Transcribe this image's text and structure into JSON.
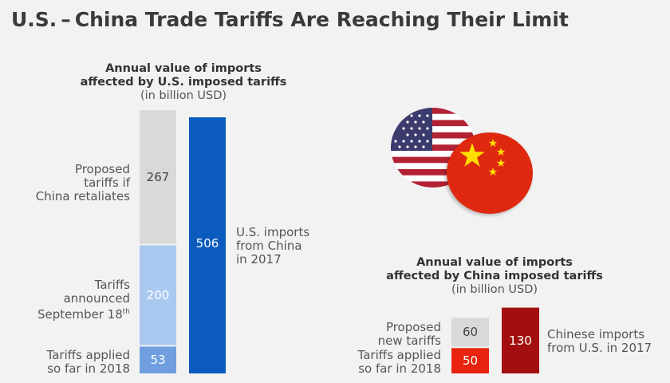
{
  "title": "U.S. – China Trade Tariffs Are Reaching Their Limit",
  "chart_data": [
    {
      "type": "bar",
      "title_line1": "Annual value of imports",
      "title_line2": "affected by U.S. imposed tariffs",
      "unit": "(in billion USD)",
      "stacked_bar": {
        "segments": [
          {
            "name_lines": [
              "Tariffs applied",
              "so far in 2018"
            ],
            "value": 53,
            "color": "#6f9fe0",
            "label_color": "#ffffff"
          },
          {
            "name_lines": [
              "Tariffs",
              "announced",
              "September 18"
            ],
            "name_sup": "th",
            "value": 200,
            "color": "#a9c9f1",
            "label_color": "#ffffff"
          },
          {
            "name_lines": [
              "Proposed",
              "tariffs if",
              "China retaliates"
            ],
            "value": 267,
            "color": "#d9d9d9",
            "label_color": "#444444"
          }
        ]
      },
      "total_bar": {
        "name_lines": [
          "U.S. imports",
          "from China",
          "in 2017"
        ],
        "value": 506,
        "color": "#0a5bbd",
        "label_color": "#ffffff"
      }
    },
    {
      "type": "bar",
      "title_line1": "Annual value of imports",
      "title_line2": "affected by China imposed tariffs",
      "unit": "(in billion USD)",
      "stacked_bar": {
        "segments": [
          {
            "name_lines": [
              "Tariffs applied",
              "so far in 2018"
            ],
            "value": 50,
            "color": "#e8230f",
            "label_color": "#ffffff"
          },
          {
            "name_lines": [
              "Proposed",
              "new tariffs"
            ],
            "value": 60,
            "color": "#d9d9d9",
            "label_color": "#444444"
          }
        ]
      },
      "total_bar": {
        "name_lines": [
          "Chinese imports",
          "from U.S. in 2017"
        ],
        "value": 130,
        "color": "#a30f10",
        "label_color": "#ffffff"
      }
    }
  ],
  "flags": {
    "left": "us-flag-icon",
    "right": "china-flag-icon"
  }
}
